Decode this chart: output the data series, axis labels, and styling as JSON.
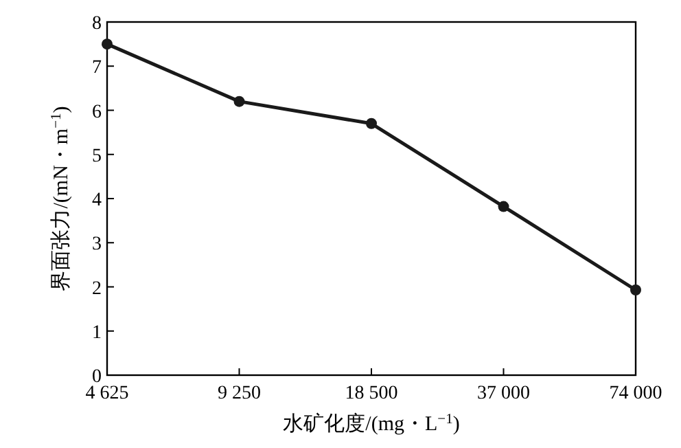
{
  "chart_data": {
    "type": "line",
    "xlabel": "水矿化度/(mg・L$^{−1}$)",
    "ylabel": "界面张力/(mN・m$^{−1}$)",
    "x": [
      4625,
      9250,
      18500,
      37000,
      74000
    ],
    "series": [
      {
        "color": "#1a1a1a",
        "values": [
          7.5,
          6.2,
          5.7,
          3.82,
          1.93
        ]
      }
    ],
    "log": "x",
    "xlim": [
      4625,
      74000
    ],
    "xticks": [
      {
        "value": 4625,
        "label": "4 625"
      },
      {
        "value": 9250,
        "label": "9 250"
      },
      {
        "value": 18500,
        "label": "18 500"
      },
      {
        "value": 37000,
        "label": "37 000"
      },
      {
        "value": 74000,
        "label": "74 000"
      }
    ],
    "ylim": [
      0,
      8
    ],
    "yticks": [
      0,
      1,
      2,
      3,
      4,
      5,
      6,
      7,
      8
    ],
    "marker": "circle",
    "line_style": "solid"
  }
}
